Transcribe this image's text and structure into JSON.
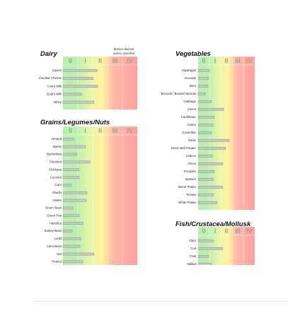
{
  "levels": [
    "0",
    "I",
    "II",
    "III",
    "IV"
  ],
  "colors": {
    "band_0": "#b9f0b0",
    "band_I": "#e6f5a8",
    "band_II": "#fff4a0",
    "band_III": "#ffb8a8",
    "band_IV": "#ffa0a0",
    "bar_fill": "#c9c9c9",
    "bar_stroke": "#8c8c8c",
    "header_text": "#9aa09a"
  },
  "chart_data": [
    {
      "type": "bar",
      "orientation": "horizontal",
      "title": "Dairy",
      "note": [
        "Bovine-derived",
        "unless specified"
      ],
      "levels": [
        "0",
        "I",
        "II",
        "III",
        "IV"
      ],
      "categories": [
        "Casein",
        "Cheddar Cheese",
        "Cow's Milk",
        "Goat's Milk",
        "Whey"
      ],
      "values": [
        2.2,
        1.95,
        2.25,
        1.2,
        2.0
      ],
      "xlim": [
        0,
        4.8
      ]
    },
    {
      "type": "bar",
      "orientation": "horizontal",
      "title": "Vegetables",
      "levels": [
        "0",
        "I",
        "II",
        "III",
        "IV"
      ],
      "categories": [
        "Asparagus",
        "Avocado",
        "Beet",
        "Broccoli / Brussel Sprouts",
        "Cabbage",
        "Carrot",
        "Cauliflower",
        "Celery",
        "Cucumber",
        "Garlic",
        "Green Bell Pepper",
        "Lettuce",
        "Onion",
        "Pumpkin",
        "Spinach",
        "Sweet Potato",
        "Tomato",
        "White Potato"
      ],
      "values": [
        0.6,
        0.55,
        0.5,
        0.35,
        0.7,
        1.35,
        0.85,
        0.8,
        0.7,
        1.65,
        1.45,
        0.75,
        1.3,
        0.85,
        0.8,
        1.3,
        0.8,
        1.0
      ],
      "xlim": [
        0,
        3.0
      ]
    },
    {
      "type": "bar",
      "orientation": "horizontal",
      "title": "Grains/Legumes/Nuts",
      "levels": [
        "0",
        "I",
        "II",
        "III",
        "IV"
      ],
      "categories": [
        "Almond",
        "Barley",
        "Buckwheat",
        "Chestnut",
        "Chickpea",
        "Coconut",
        "Corn",
        "Gliadin",
        "Gluten",
        "Green Bean",
        "Green Pea",
        "Hazelnut",
        "Kidney Bean",
        "Lentil",
        "Lima Bean",
        "Oat",
        "Peanut"
      ],
      "values": [
        0.7,
        1.45,
        0.9,
        1.75,
        1.05,
        1.05,
        0.55,
        1.55,
        1.5,
        0.65,
        1.05,
        1.3,
        0.6,
        1.15,
        1.1,
        2.0,
        1.3
      ],
      "xlim": [
        0,
        4.8
      ]
    },
    {
      "type": "bar",
      "orientation": "horizontal",
      "title": "Fish/Crustacea/Mollusk",
      "levels": [
        "0",
        "I",
        "II",
        "III",
        "IV"
      ],
      "categories": [
        "Clam",
        "Cod",
        "Crab",
        "Halibut"
      ],
      "values": [
        0.8,
        1.3,
        0.55,
        0.7
      ],
      "xlim": [
        0,
        3.0
      ]
    }
  ]
}
